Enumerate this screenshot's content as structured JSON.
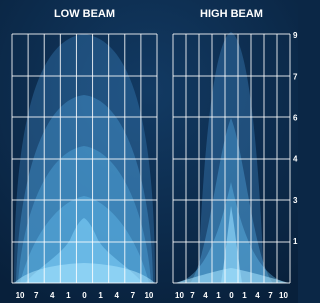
{
  "panels": [
    {
      "title": "LOW BEAM",
      "x_labels": [
        "10",
        "7",
        "4",
        "1",
        "0",
        "1",
        "4",
        "7",
        "10"
      ]
    },
    {
      "title": "HIGH BEAM",
      "x_labels": [
        "10",
        "7",
        "4",
        "1",
        "0",
        "1",
        "4",
        "7",
        "10"
      ]
    }
  ],
  "y_labels": [
    "9",
    "7",
    "6",
    "4",
    "3",
    "1"
  ]
}
